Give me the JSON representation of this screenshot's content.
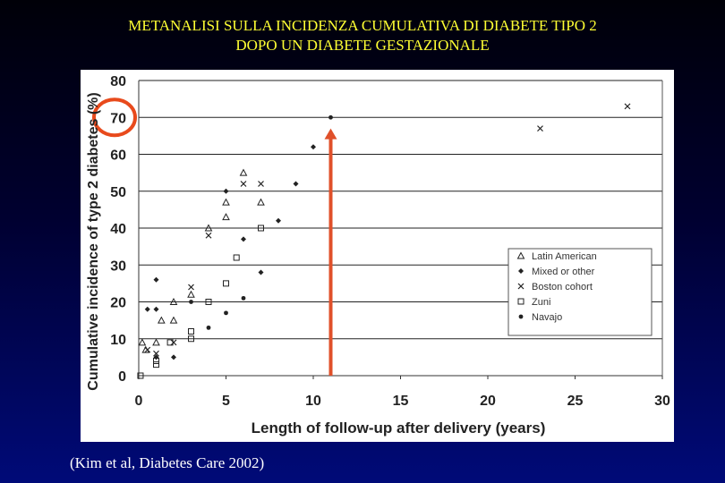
{
  "slide": {
    "title_line1": "METANALISI SULLA INCIDENZA CUMULATIVA DI DIABETE TIPO 2",
    "title_line2": "DOPO UN DIABETE GESTAZIONALE",
    "citation": "(Kim et al, Diabetes Care 2002)"
  },
  "colors": {
    "title": "#ffff33",
    "highlight_circle": "#e84a1c",
    "arrow": "#e0502a",
    "markers": "#222222"
  },
  "chart_data": {
    "type": "scatter",
    "xlabel": "Length of follow-up after delivery (years)",
    "ylabel": "Cumulative incidence of type 2 diabetes (%)",
    "xlim": [
      0,
      30
    ],
    "ylim": [
      0,
      80
    ],
    "xticks": [
      0,
      5,
      10,
      15,
      20,
      25,
      30
    ],
    "yticks": [
      0,
      10,
      20,
      30,
      40,
      50,
      60,
      70,
      80
    ],
    "grid": "horizontal",
    "legend_position": "right",
    "highlight": {
      "ytick": 70,
      "shape": "circle"
    },
    "arrow": {
      "x": 11,
      "from_y": 0,
      "to_y": 67
    },
    "series": [
      {
        "name": "Latin American",
        "marker": "triangle",
        "points": [
          [
            0.2,
            9
          ],
          [
            0.4,
            7
          ],
          [
            1,
            9
          ],
          [
            1.3,
            15
          ],
          [
            2,
            20
          ],
          [
            2,
            15
          ],
          [
            3,
            22
          ],
          [
            4,
            40
          ],
          [
            5,
            47
          ],
          [
            5,
            43
          ],
          [
            6,
            55
          ],
          [
            7,
            47
          ]
        ]
      },
      {
        "name": "Mixed or other",
        "marker": "diamond",
        "points": [
          [
            0.5,
            18
          ],
          [
            1,
            26
          ],
          [
            1,
            18
          ],
          [
            1,
            5
          ],
          [
            2,
            5
          ],
          [
            5,
            50
          ],
          [
            6,
            37
          ],
          [
            7,
            28
          ],
          [
            8,
            42
          ],
          [
            9,
            52
          ],
          [
            10,
            62
          ]
        ]
      },
      {
        "name": "Boston cohort",
        "marker": "x",
        "points": [
          [
            0.5,
            7
          ],
          [
            1,
            6
          ],
          [
            2,
            9
          ],
          [
            3,
            24
          ],
          [
            4,
            38
          ],
          [
            6,
            52
          ],
          [
            7,
            52
          ],
          [
            23,
            67
          ],
          [
            28,
            73
          ]
        ]
      },
      {
        "name": "Zuni",
        "marker": "square",
        "points": [
          [
            0.1,
            0
          ],
          [
            1,
            3
          ],
          [
            1,
            4
          ],
          [
            1.8,
            9
          ],
          [
            3,
            10
          ],
          [
            3,
            12
          ],
          [
            4,
            20
          ],
          [
            5,
            25
          ],
          [
            5.6,
            32
          ],
          [
            7,
            40
          ]
        ]
      },
      {
        "name": "Navajo",
        "marker": "dot",
        "points": [
          [
            3,
            20
          ],
          [
            4,
            13
          ],
          [
            5,
            17
          ],
          [
            6,
            21
          ],
          [
            11,
            70
          ]
        ]
      }
    ]
  }
}
